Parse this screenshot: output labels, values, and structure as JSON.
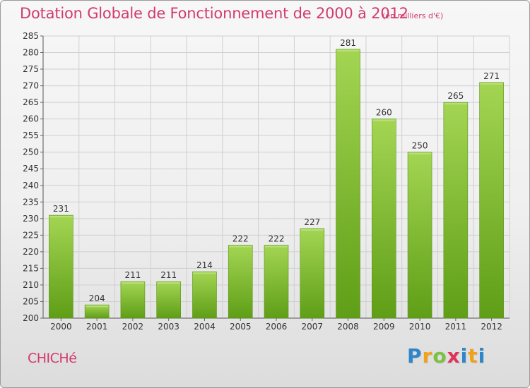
{
  "title": "Dotation Globale de Fonctionnement de 2000 à 2012",
  "subtitle": "(en milliers d'€)",
  "place": "CHICHé",
  "brand": {
    "letters": [
      "P",
      "r",
      "o",
      "x",
      "i",
      "t",
      "i"
    ]
  },
  "colors": {
    "title": "#d23a6e",
    "bar_light": "#9fd24f",
    "bar_dark": "#64a31a",
    "grid": "#cfcfcf"
  },
  "chart_data": {
    "type": "bar",
    "categories": [
      "2000",
      "2001",
      "2002",
      "2003",
      "2004",
      "2005",
      "2006",
      "2007",
      "2008",
      "2009",
      "2010",
      "2011",
      "2012"
    ],
    "values": [
      231,
      204,
      211,
      211,
      214,
      222,
      222,
      227,
      281,
      260,
      250,
      265,
      271
    ],
    "ylim": [
      200,
      285
    ],
    "yticks": [
      200,
      205,
      210,
      215,
      220,
      225,
      230,
      235,
      240,
      245,
      250,
      255,
      260,
      265,
      270,
      275,
      280,
      285
    ],
    "grid": true,
    "data_labels": true
  }
}
